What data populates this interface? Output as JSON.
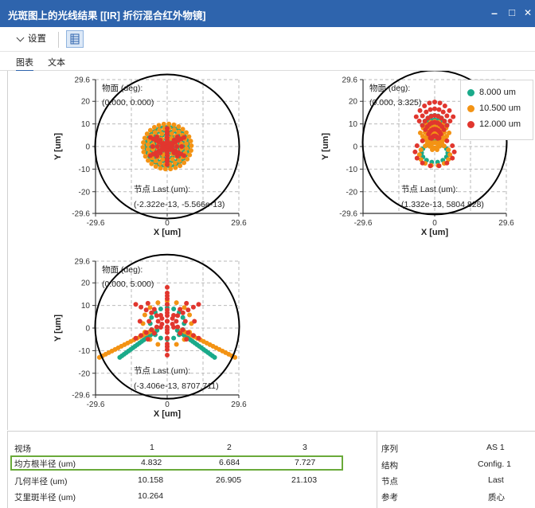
{
  "window": {
    "title": "光斑图上的光线结果 [[IR] 折衍混合红外物镜]",
    "minimize": "–",
    "maximize": "□",
    "close": "✕"
  },
  "toolbar": {
    "settings_label": "设置"
  },
  "tabs": [
    {
      "label": "图表"
    },
    {
      "label": "文本"
    }
  ],
  "colors": {
    "series1": "#1aaa8a",
    "series2": "#f39314",
    "series3": "#e1362e",
    "accent": "#2e64ad",
    "highlight": "#6aaa3a"
  },
  "legend": [
    {
      "label": "8.000 um"
    },
    {
      "label": "10.500 um"
    },
    {
      "label": "12.000 um"
    }
  ],
  "plots": [
    {
      "field_label": "物面 (deg):",
      "field_value": "(0.000, 0.000)",
      "node_label": "节点 Last (um):",
      "node_value": "(-2.322e-13, -5.566e-13)"
    },
    {
      "field_label": "物面 (deg):",
      "field_value": "(0.000, 3.325)",
      "node_label": "节点 Last (um):",
      "node_value": "(1.332e-13, 5804.828)"
    },
    {
      "field_label": "物面 (deg):",
      "field_value": "(0.000, 5.000)",
      "node_label": "节点 Last (um):",
      "node_value": "(-3.406e-13, 8707.711)"
    }
  ],
  "axes": {
    "xlabel": "X [um]",
    "ylabel": "Y [um]",
    "xticks": [
      "-29.6",
      "0",
      "29.6"
    ],
    "yticks": [
      "29.6",
      "20",
      "10",
      "0",
      "-10",
      "-20",
      "-29.6"
    ],
    "range": [
      -29.6,
      29.6
    ]
  },
  "chart_data": [
    {
      "type": "scatter",
      "title": "",
      "xlabel": "X [um]",
      "ylabel": "Y [um]",
      "xlim": [
        -29.6,
        29.6
      ],
      "ylim": [
        -29.6,
        29.6
      ],
      "airy_radius": 10.264,
      "series": [
        {
          "name": "8.000 um",
          "pattern": "disk",
          "cy": 0,
          "r": 9
        },
        {
          "name": "10.500 um",
          "pattern": "disk",
          "cy": 0,
          "r": 10
        },
        {
          "name": "12.000 um",
          "pattern": "star",
          "cy": 0,
          "r": 8
        }
      ]
    },
    {
      "type": "scatter",
      "title": "",
      "xlabel": "X [um]",
      "ylabel": "Y [um]",
      "xlim": [
        -29.6,
        29.6
      ],
      "ylim": [
        -29.6,
        29.6
      ],
      "airy_radius": 10.264,
      "series": [
        {
          "name": "8.000 um",
          "pattern": "arc",
          "cy": 6,
          "r": 12
        },
        {
          "name": "10.500 um",
          "pattern": "arc",
          "cy": 2,
          "r": 14
        },
        {
          "name": "12.000 um",
          "pattern": "arc",
          "cy": 8,
          "r": 18
        }
      ]
    },
    {
      "type": "scatter",
      "title": "",
      "xlabel": "X [um]",
      "ylabel": "Y [um]",
      "xlim": [
        -29.6,
        29.6
      ],
      "ylim": [
        -29.6,
        29.6
      ],
      "airy_radius": 10.264,
      "series": [
        {
          "name": "8.000 um",
          "pattern": "wings",
          "cy": 2,
          "r": 14
        },
        {
          "name": "10.500 um",
          "pattern": "wings",
          "cy": 2,
          "r": 20
        },
        {
          "name": "12.000 um",
          "pattern": "star",
          "cy": 3,
          "r": 15
        }
      ]
    }
  ],
  "table": {
    "header": {
      "label": "视场",
      "cols": [
        "1",
        "2",
        "3"
      ]
    },
    "rows": [
      {
        "label": "均方根半径 (um)",
        "values": [
          "4.832",
          "6.684",
          "7.727"
        ]
      },
      {
        "label": "几何半径 (um)",
        "values": [
          "10.158",
          "26.905",
          "21.103"
        ]
      },
      {
        "label": "艾里斑半径 (um)",
        "values": [
          "10.264",
          "",
          ""
        ]
      }
    ],
    "info": [
      {
        "key": "序列",
        "value": "AS 1"
      },
      {
        "key": "结构",
        "value": "Config. 1"
      },
      {
        "key": "节点",
        "value": "Last"
      },
      {
        "key": "参考",
        "value": "质心"
      }
    ]
  }
}
